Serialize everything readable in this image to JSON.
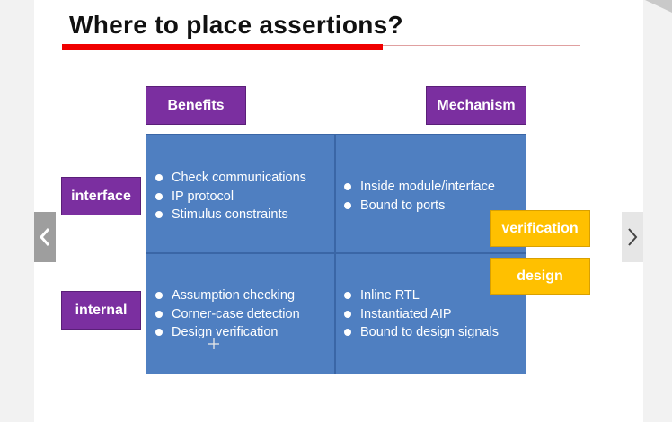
{
  "slide": {
    "title": "Where to place assertions?"
  },
  "headers": {
    "benefits": "Benefits",
    "mechanism": "Mechanism"
  },
  "rows": {
    "interface": "interface",
    "internal": "internal"
  },
  "cells": {
    "interface_benefits": [
      "Check communications",
      "IP protocol",
      "Stimulus constraints"
    ],
    "interface_mechanism": [
      "Inside module/interface",
      "Bound to ports"
    ],
    "internal_benefits": [
      "Assumption checking",
      "Corner-case detection",
      "Design verification"
    ],
    "internal_mechanism": [
      "Inline RTL",
      "Instantiated AIP",
      "Bound to design signals"
    ]
  },
  "tags": {
    "verification": "verification",
    "design": "design"
  },
  "icons": {
    "prev": "chevron-left-icon",
    "next": "chevron-right-icon",
    "cursor": "move-cursor-icon"
  },
  "colors": {
    "accent_red": "#f00000",
    "purple": "#7b2fa0",
    "grid_blue": "#4f7fc1",
    "orange": "#ffc000"
  }
}
